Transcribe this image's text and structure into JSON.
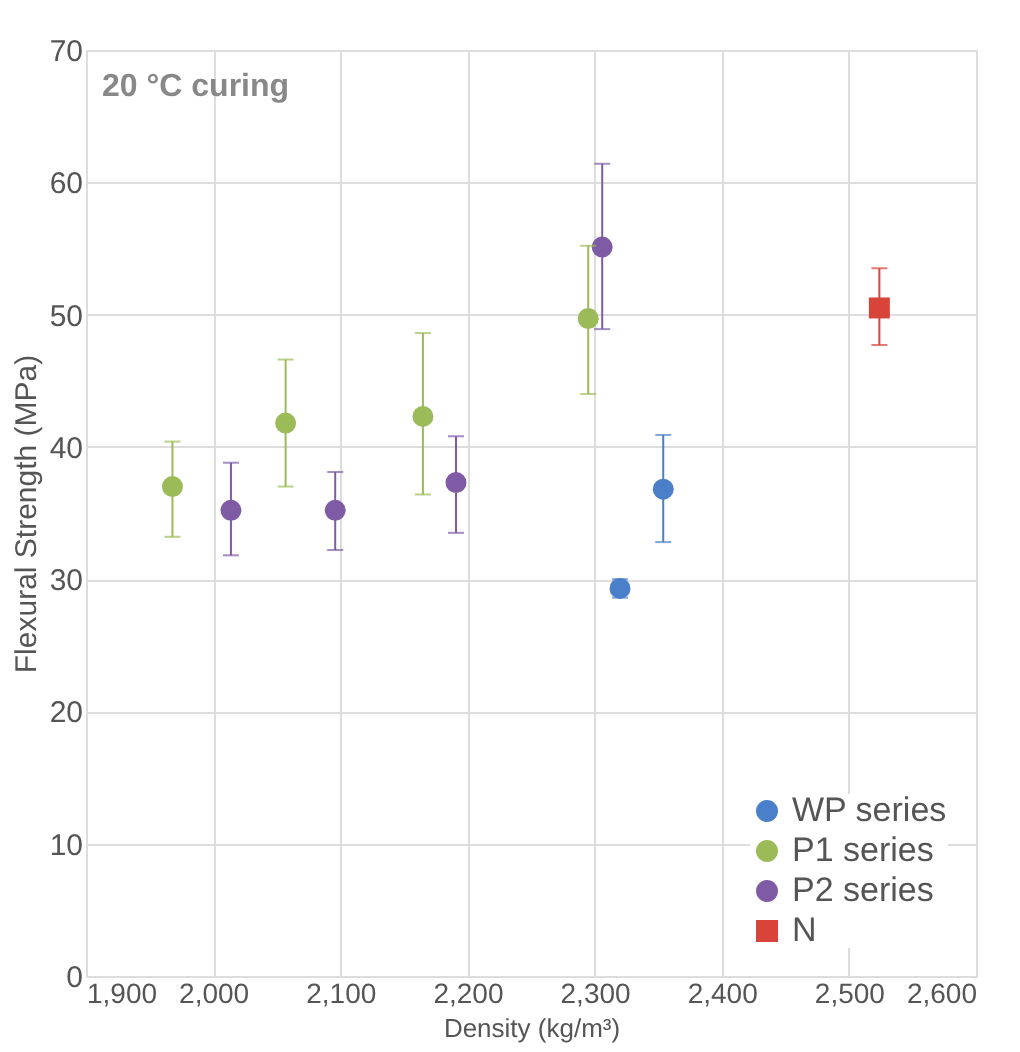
{
  "chart_data": {
    "type": "scatter",
    "xlabel": "Density (kg/m³)",
    "ylabel": "Flexural Strength (MPa)",
    "annotations": [
      "20 °C curing"
    ],
    "xlim": [
      1900,
      2600
    ],
    "xticks": [
      {
        "value": 1900,
        "label": "1,900"
      },
      {
        "value": 2000,
        "label": "2,000"
      },
      {
        "value": 2100,
        "label": "2,100"
      },
      {
        "value": 2200,
        "label": "2,200"
      },
      {
        "value": 2300,
        "label": "2,300"
      },
      {
        "value": 2400,
        "label": "2,400"
      },
      {
        "value": 2500,
        "label": "2,500"
      },
      {
        "value": 2600,
        "label": "2,600"
      }
    ],
    "ylim": [
      0,
      70
    ],
    "yticks": [
      0,
      10,
      20,
      30,
      40,
      50,
      60,
      70
    ],
    "grid": true,
    "legend": "bottom right",
    "series": [
      {
        "name": "WP series",
        "color": "#4a7fc9",
        "marker": "circle",
        "x": [
          2320,
          2354
        ],
        "values": [
          29.3,
          36.8
        ],
        "errors": [
          [
            28.6,
            30.0
          ],
          [
            32.8,
            40.9
          ]
        ]
      },
      {
        "name": "P1 series",
        "color": "#9bbb59",
        "marker": "circle",
        "x": [
          1968,
          2057,
          2165,
          2295
        ],
        "values": [
          37.0,
          41.8,
          42.3,
          49.7
        ],
        "errors": [
          [
            33.2,
            40.4
          ],
          [
            37.0,
            46.6
          ],
          [
            36.4,
            48.6
          ],
          [
            44.0,
            55.2
          ]
        ]
      },
      {
        "name": "P2 series",
        "color": "#7f5ba6",
        "marker": "circle",
        "x": [
          2014,
          2096,
          2191,
          2306
        ],
        "values": [
          35.2,
          35.2,
          37.3,
          55.1
        ],
        "errors": [
          [
            31.8,
            38.8
          ],
          [
            32.2,
            38.1
          ],
          [
            33.5,
            40.8
          ],
          [
            48.9,
            61.4
          ]
        ]
      },
      {
        "name": "N",
        "color": "#d9443a",
        "marker": "square",
        "x": [
          2524
        ],
        "values": [
          50.5
        ],
        "errors": [
          [
            47.7,
            53.5
          ]
        ]
      }
    ]
  }
}
